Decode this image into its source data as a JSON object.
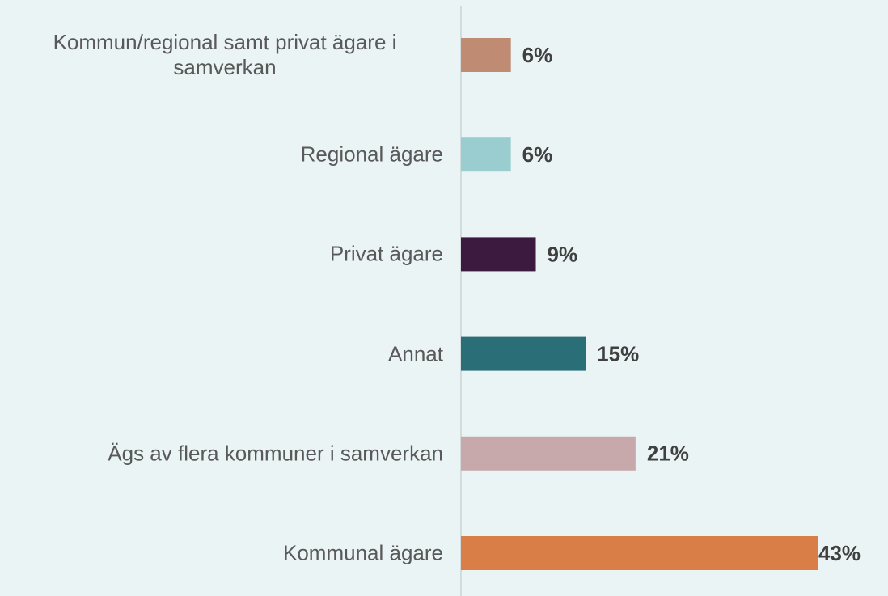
{
  "chart_data": {
    "type": "barh",
    "categories": [
      "Kommun/regional samt privat ägare i samverkan",
      "Regional ägare",
      "Privat ägare",
      "Annat",
      "Ägs av flera kommuner i samverkan",
      "Kommunal ägare"
    ],
    "values": [
      6,
      6,
      9,
      15,
      21,
      43
    ],
    "value_labels": [
      "6%",
      "6%",
      "9%",
      "15%",
      "21%",
      "43%"
    ],
    "colors": [
      "#bf8b72",
      "#9acdd0",
      "#3c1a40",
      "#2a6e78",
      "#c8a9ab",
      "#da7e48"
    ]
  }
}
